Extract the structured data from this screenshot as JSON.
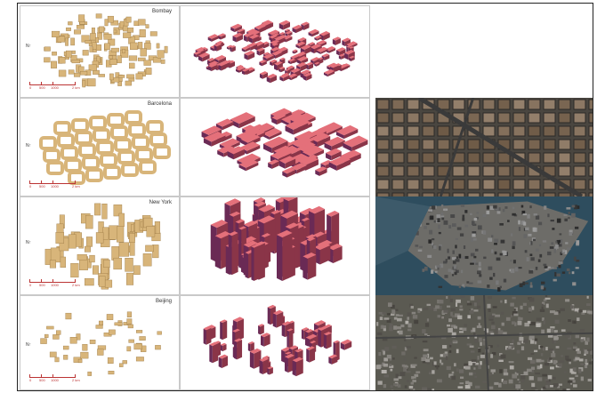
{
  "rows": [
    {
      "city": "Bombay",
      "scale_labels": [
        "0",
        "500",
        "1000",
        "2 km"
      ],
      "has_photo": false
    },
    {
      "city": "Barcelona",
      "scale_labels": [
        "0",
        "500",
        "1000",
        "2 km"
      ],
      "has_photo": true
    },
    {
      "city": "New York",
      "scale_labels": [
        "0",
        "500",
        "1000",
        "2 km"
      ],
      "has_photo": true
    },
    {
      "city": "Beijing",
      "scale_labels": [
        "0",
        "500",
        "1000",
        "2 km"
      ],
      "has_photo": true
    }
  ],
  "colors": {
    "footprint": "#d8b57a",
    "footprint_edge": "#9c7a45",
    "block_top": "#e4707a",
    "block_side": "#8a3548",
    "block_dark": "#6a2a55"
  }
}
